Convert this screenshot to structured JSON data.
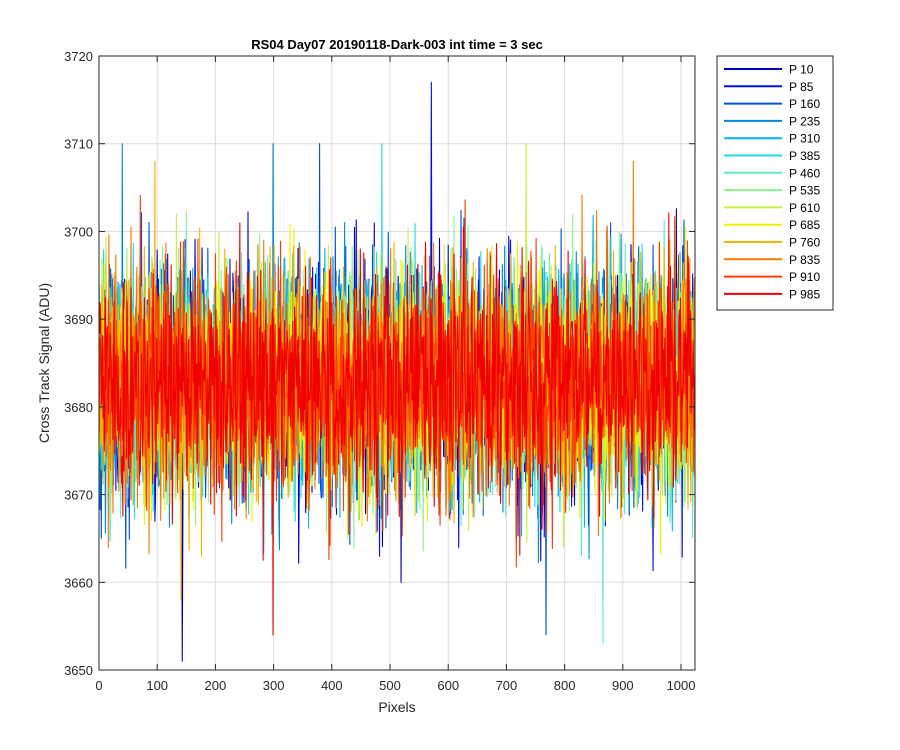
{
  "chart_data": {
    "type": "line",
    "title": "RS04 Day07 20190118-Dark-003 int time = 3 sec",
    "xlabel": "Pixels",
    "ylabel": "Cross Track Signal (ADU)",
    "xlim": [
      0,
      1024
    ],
    "ylim": [
      3650,
      3720
    ],
    "xticks": [
      0,
      100,
      200,
      300,
      400,
      500,
      600,
      700,
      800,
      900,
      1000
    ],
    "yticks": [
      3650,
      3660,
      3670,
      3680,
      3690,
      3700,
      3710,
      3720
    ],
    "grid": true,
    "legend_position": "outside-top-right",
    "noise_center": 3683,
    "series": [
      {
        "name": "P 10",
        "color": "#0000b4"
      },
      {
        "name": "P 85",
        "color": "#0010e0"
      },
      {
        "name": "P 160",
        "color": "#0050d8"
      },
      {
        "name": "P 235",
        "color": "#0088e0"
      },
      {
        "name": "P 310",
        "color": "#00b4e8"
      },
      {
        "name": "P 385",
        "color": "#20dcdc"
      },
      {
        "name": "P 460",
        "color": "#60ecc0"
      },
      {
        "name": "P 535",
        "color": "#90f090"
      },
      {
        "name": "P 610",
        "color": "#c8f040"
      },
      {
        "name": "P 685",
        "color": "#f0f000"
      },
      {
        "name": "P 760",
        "color": "#f0b400"
      },
      {
        "name": "P 835",
        "color": "#f87800"
      },
      {
        "name": "P 910",
        "color": "#f84000"
      },
      {
        "name": "P 985",
        "color": "#f00000"
      }
    ],
    "annotated_extremes": [
      {
        "series": "P 85",
        "x": 570,
        "y": 3717
      },
      {
        "series": "P 10",
        "x": 142,
        "y": 3651
      },
      {
        "series": "P 235",
        "x": 39,
        "y": 3710
      },
      {
        "series": "P 235",
        "x": 298,
        "y": 3710
      },
      {
        "series": "P 160",
        "x": 378,
        "y": 3710
      },
      {
        "series": "P 385",
        "x": 485,
        "y": 3710
      },
      {
        "series": "P 610",
        "x": 733,
        "y": 3710
      },
      {
        "series": "P 985",
        "x": 298,
        "y": 3654
      },
      {
        "series": "P 460",
        "x": 865,
        "y": 3653
      },
      {
        "series": "P 160",
        "x": 767,
        "y": 3654
      },
      {
        "series": "P 760",
        "x": 140,
        "y": 3658
      },
      {
        "series": "P 835",
        "x": 917,
        "y": 3708
      },
      {
        "series": "P 760",
        "x": 95,
        "y": 3708
      }
    ]
  }
}
